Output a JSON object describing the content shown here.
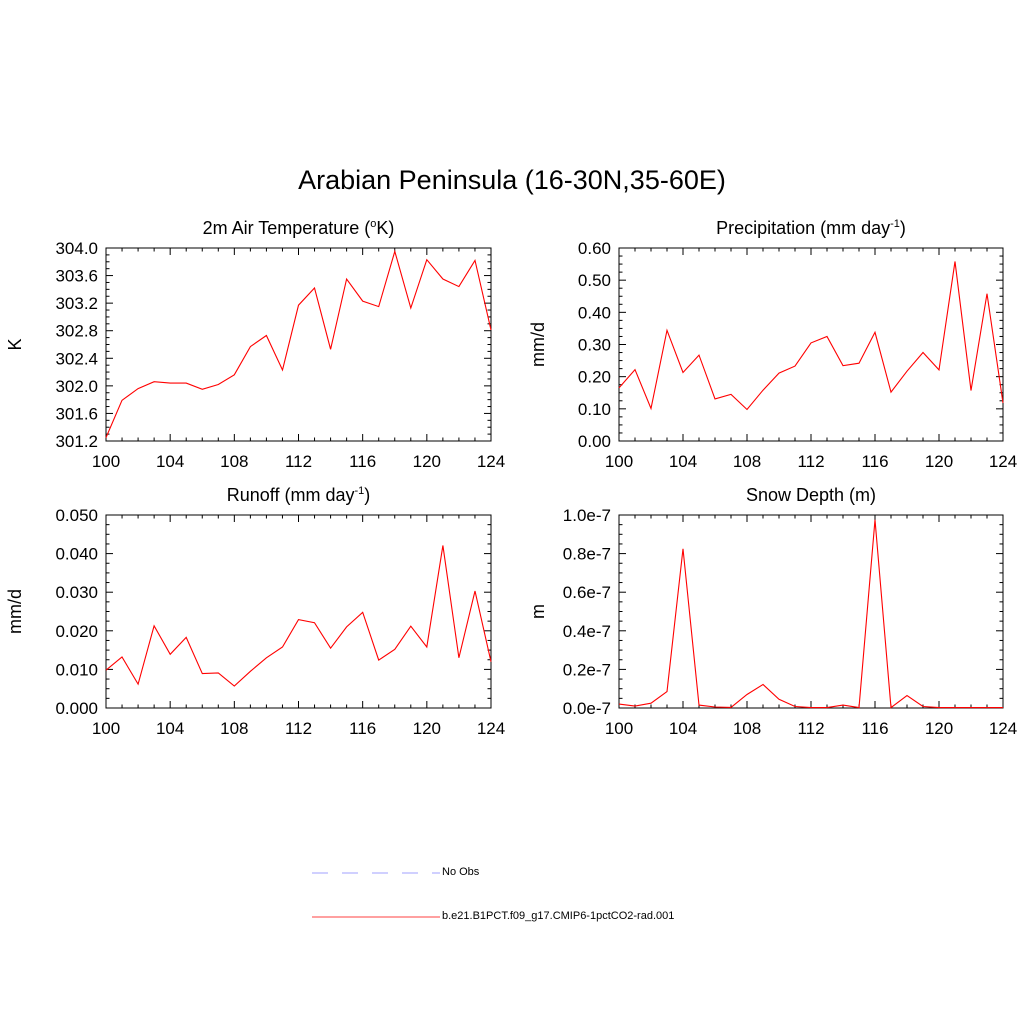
{
  "figure": {
    "title": "Arabian Peninsula (16-30N,35-60E)"
  },
  "legend": [
    {
      "label": "No Obs",
      "color": "#b3b3ff",
      "style": "dashed"
    },
    {
      "label": "b.e21.B1PCT.f09_g17.CMIP6-1pctCO2-rad.001",
      "color": "#ff0000",
      "style": "solid"
    }
  ],
  "chart_data": [
    {
      "type": "line",
      "title": "2m Air Temperature (°K)",
      "title_main": "2m Air Temperature (",
      "title_sup": "o",
      "title_tail": "K)",
      "ylabel": "K",
      "xlim": [
        100,
        124
      ],
      "ylim": [
        301.2,
        304.0
      ],
      "xticks": [
        "100",
        "104",
        "108",
        "112",
        "116",
        "120",
        "124"
      ],
      "yticks": [
        "301.2",
        "301.6",
        "302.0",
        "302.4",
        "302.8",
        "303.2",
        "303.6",
        "304.0"
      ],
      "series": [
        {
          "name": "b.e21.B1PCT.f09_g17.CMIP6-1pctCO2-rad.001",
          "color": "#ff0000",
          "x": [
            100,
            101,
            102,
            103,
            104,
            105,
            106,
            107,
            108,
            109,
            110,
            111,
            112,
            113,
            114,
            115,
            116,
            117,
            118,
            119,
            120,
            121,
            122,
            123,
            124
          ],
          "y": [
            301.25,
            301.79,
            301.96,
            302.06,
            302.04,
            302.04,
            301.95,
            302.02,
            302.16,
            302.57,
            302.73,
            302.23,
            303.17,
            303.42,
            302.53,
            303.55,
            303.23,
            303.15,
            303.95,
            303.13,
            303.83,
            303.55,
            303.44,
            303.82,
            302.81
          ]
        }
      ]
    },
    {
      "type": "line",
      "title": "Precipitation (mm day-1)",
      "title_main": "Precipitation (mm day",
      "title_sup": "-1",
      "title_tail": ")",
      "ylabel": "mm/d",
      "xlim": [
        100,
        124
      ],
      "ylim": [
        0.0,
        0.6
      ],
      "xticks": [
        "100",
        "104",
        "108",
        "112",
        "116",
        "120",
        "124"
      ],
      "yticks": [
        "0.00",
        "0.10",
        "0.20",
        "0.30",
        "0.40",
        "0.50",
        "0.60"
      ],
      "series": [
        {
          "name": "b.e21.B1PCT.f09_g17.CMIP6-1pctCO2-rad.001",
          "color": "#ff0000",
          "x": [
            100,
            101,
            102,
            103,
            104,
            105,
            106,
            107,
            108,
            109,
            110,
            111,
            112,
            113,
            114,
            115,
            116,
            117,
            118,
            119,
            120,
            121,
            122,
            123,
            124
          ],
          "y": [
            0.165,
            0.222,
            0.101,
            0.344,
            0.213,
            0.267,
            0.131,
            0.145,
            0.098,
            0.158,
            0.211,
            0.233,
            0.305,
            0.325,
            0.234,
            0.242,
            0.338,
            0.152,
            0.217,
            0.275,
            0.221,
            0.558,
            0.157,
            0.458,
            0.118
          ]
        }
      ]
    },
    {
      "type": "line",
      "title": "Runoff (mm day-1)",
      "title_main": "Runoff (mm day",
      "title_sup": "-1",
      "title_tail": ")",
      "ylabel": "mm/d",
      "xlim": [
        100,
        124
      ],
      "ylim": [
        0.0,
        0.05
      ],
      "xticks": [
        "100",
        "104",
        "108",
        "112",
        "116",
        "120",
        "124"
      ],
      "yticks": [
        "0.000",
        "0.010",
        "0.020",
        "0.030",
        "0.040",
        "0.050"
      ],
      "series": [
        {
          "name": "b.e21.B1PCT.f09_g17.CMIP6-1pctCO2-rad.001",
          "color": "#ff0000",
          "x": [
            100,
            101,
            102,
            103,
            104,
            105,
            106,
            107,
            108,
            109,
            110,
            111,
            112,
            113,
            114,
            115,
            116,
            117,
            118,
            119,
            120,
            121,
            122,
            123,
            124
          ],
          "y": [
            0.0098,
            0.0132,
            0.0062,
            0.0213,
            0.0139,
            0.0183,
            0.0089,
            0.0091,
            0.0057,
            0.0095,
            0.013,
            0.0158,
            0.0229,
            0.0221,
            0.0155,
            0.021,
            0.0248,
            0.0124,
            0.0152,
            0.0212,
            0.0158,
            0.0421,
            0.013,
            0.0303,
            0.012
          ]
        }
      ]
    },
    {
      "type": "line",
      "title": "Snow Depth (m)",
      "title_main": "Snow Depth (m)",
      "title_sup": "",
      "title_tail": "",
      "ylabel": "m",
      "xlim": [
        100,
        124
      ],
      "ylim": [
        0.0,
        1e-07
      ],
      "xticks": [
        "100",
        "104",
        "108",
        "112",
        "116",
        "120",
        "124"
      ],
      "yticks": [
        "0.0e-7",
        "0.2e-7",
        "0.4e-7",
        "0.6e-7",
        "0.8e-7",
        "1.0e-7"
      ],
      "series": [
        {
          "name": "b.e21.B1PCT.f09_g17.CMIP6-1pctCO2-rad.001",
          "color": "#ff0000",
          "x": [
            100,
            101,
            102,
            103,
            104,
            105,
            106,
            107,
            108,
            109,
            110,
            111,
            112,
            113,
            114,
            115,
            116,
            117,
            118,
            119,
            120,
            121,
            122,
            123,
            124
          ],
          "y": [
            2e-09,
            1e-09,
            2.5e-09,
            8.5e-09,
            8.25e-08,
            1.5e-09,
            5e-10,
            3e-10,
            7e-09,
            1.22e-08,
            4.5e-09,
            8e-10,
            2e-10,
            2e-10,
            1.5e-09,
            2e-10,
            9.75e-08,
            2e-10,
            6.5e-09,
            8e-10,
            2e-10,
            2e-10,
            2e-10,
            2e-10,
            2e-10
          ]
        }
      ]
    }
  ]
}
